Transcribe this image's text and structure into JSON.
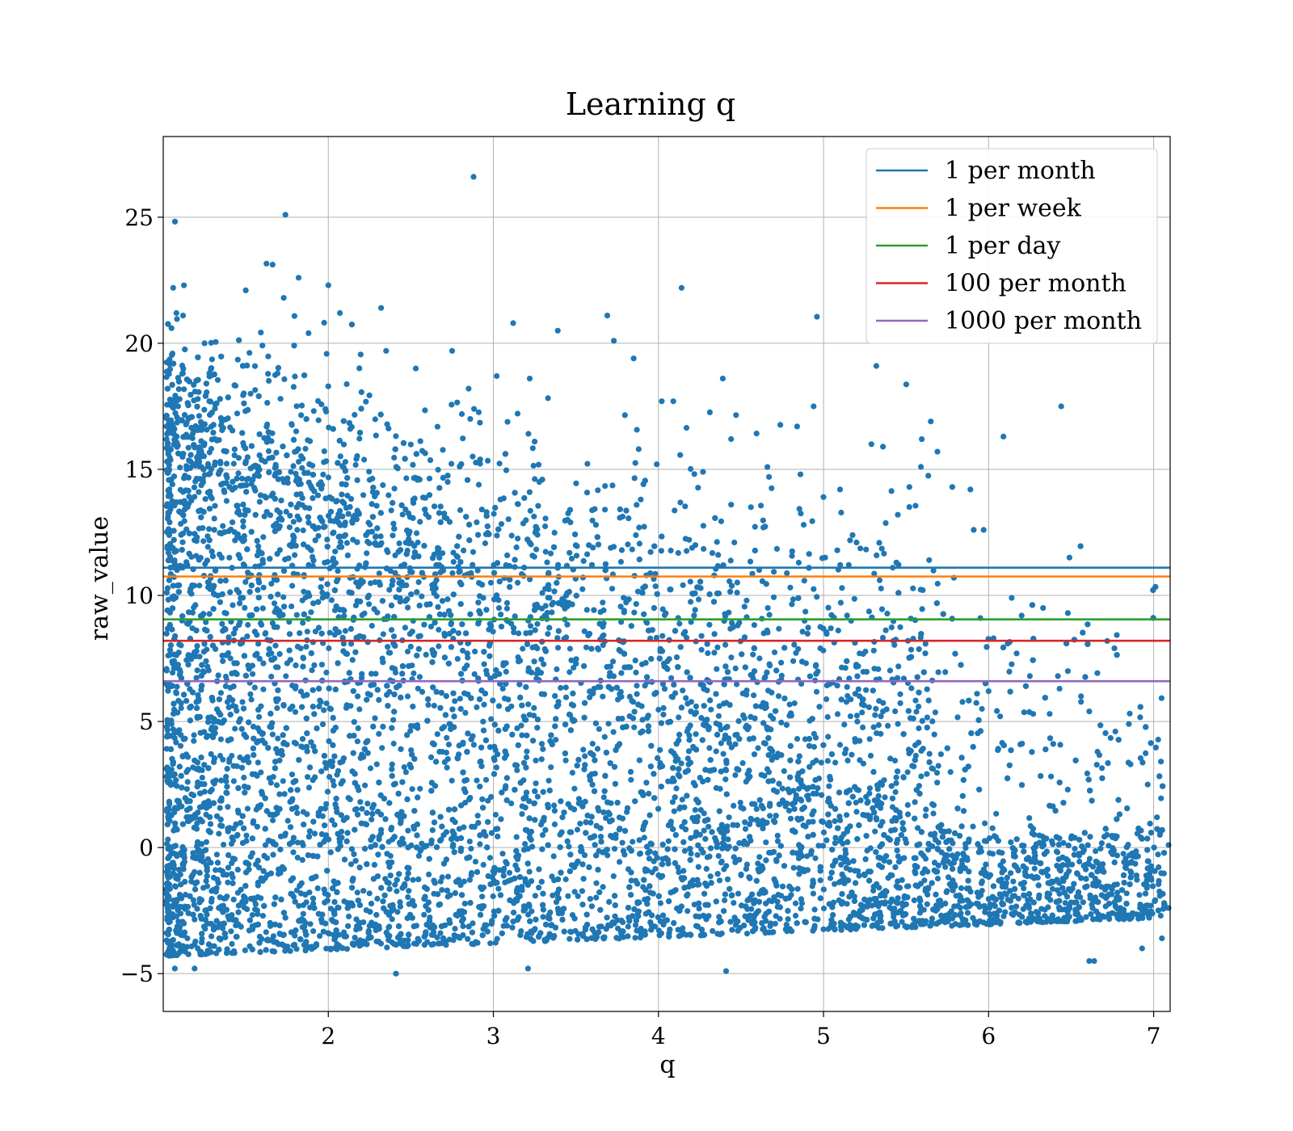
{
  "chart_data": {
    "type": "scatter",
    "title": "Learning q",
    "xlabel": "q",
    "ylabel": "raw_value",
    "xlim": [
      1.0,
      7.1
    ],
    "ylim": [
      -6.5,
      28.2
    ],
    "xticks": [
      2,
      3,
      4,
      5,
      6,
      7
    ],
    "xtick_labels": [
      "2",
      "3",
      "4",
      "5",
      "6",
      "7"
    ],
    "yticks": [
      -5,
      0,
      5,
      10,
      15,
      20,
      25
    ],
    "ytick_labels": [
      "−5",
      "0",
      "5",
      "10",
      "15",
      "20",
      "25"
    ],
    "grid": true,
    "legend_position": "top-right",
    "scatter_color": "#1f77b4",
    "scatter_points": [
      [
        1.74,
        25.1
      ],
      [
        2.88,
        26.6
      ],
      [
        1.06,
        22.2
      ],
      [
        1.5,
        22.1
      ],
      [
        1.82,
        22.6
      ],
      [
        2.0,
        22.3
      ],
      [
        1.73,
        21.8
      ],
      [
        1.08,
        21.2
      ],
      [
        1.12,
        21.1
      ],
      [
        2.07,
        21.2
      ],
      [
        2.32,
        21.4
      ],
      [
        1.05,
        20.6
      ],
      [
        3.12,
        20.8
      ],
      [
        3.69,
        21.1
      ],
      [
        3.73,
        20.1
      ],
      [
        3.39,
        20.5
      ],
      [
        4.14,
        22.2
      ],
      [
        1.25,
        20.0
      ],
      [
        1.88,
        20.4
      ],
      [
        2.35,
        19.7
      ],
      [
        2.75,
        19.7
      ],
      [
        3.85,
        19.4
      ],
      [
        5.32,
        19.1
      ],
      [
        2.53,
        19.0
      ],
      [
        4.39,
        18.6
      ],
      [
        3.02,
        18.7
      ],
      [
        3.22,
        18.6
      ],
      [
        2.85,
        18.2
      ],
      [
        4.94,
        17.5
      ],
      [
        6.44,
        17.5
      ],
      [
        4.02,
        17.7
      ],
      [
        4.09,
        17.7
      ],
      [
        4.84,
        16.7
      ],
      [
        5.65,
        16.9
      ],
      [
        6.09,
        16.3
      ],
      [
        4.44,
        16.2
      ],
      [
        3.25,
        16.1
      ],
      [
        5.29,
        16.0
      ],
      [
        5.36,
        15.9
      ],
      [
        5.69,
        15.7
      ],
      [
        5.59,
        15.1
      ],
      [
        3.99,
        15.2
      ],
      [
        3.88,
        15.8
      ],
      [
        4.27,
        14.9
      ],
      [
        4.67,
        14.7
      ],
      [
        4.86,
        14.8
      ],
      [
        5.78,
        14.3
      ],
      [
        5.89,
        14.2
      ],
      [
        5.1,
        14.2
      ],
      [
        5.0,
        13.9
      ],
      [
        5.52,
        14.3
      ],
      [
        4.56,
        13.5
      ],
      [
        4.44,
        13.6
      ],
      [
        5.45,
        13.2
      ],
      [
        5.91,
        12.6
      ],
      [
        5.97,
        12.6
      ],
      [
        6.49,
        11.5
      ],
      [
        5.64,
        11.4
      ],
      [
        5.2,
        12.1
      ],
      [
        5.01,
        11.5
      ],
      [
        4.85,
        11.3
      ],
      [
        4.88,
        12.8
      ],
      [
        4.46,
        12.1
      ],
      [
        5.34,
        10.6
      ],
      [
        5.42,
        11.1
      ],
      [
        5.79,
        10.7
      ],
      [
        6.14,
        9.9
      ],
      [
        6.2,
        9.2
      ],
      [
        6.33,
        9.5
      ],
      [
        6.48,
        9.3
      ],
      [
        5.95,
        9.1
      ],
      [
        6.03,
        8.3
      ],
      [
        6.17,
        7.7
      ],
      [
        6.25,
        6.8
      ],
      [
        6.42,
        6.8
      ],
      [
        6.48,
        7.0
      ],
      [
        6.43,
        6.3
      ],
      [
        6.61,
        5.4
      ],
      [
        6.56,
        6.0
      ],
      [
        6.27,
        5.3
      ],
      [
        6.37,
        5.3
      ],
      [
        6.07,
        5.2
      ],
      [
        6.0,
        6.2
      ],
      [
        5.93,
        6.1
      ],
      [
        5.96,
        5.5
      ],
      [
        6.85,
        4.9
      ],
      [
        6.86,
        3.3
      ],
      [
        6.66,
        3.8
      ],
      [
        7.02,
        1.2
      ],
      [
        7.04,
        0.6
      ],
      [
        7.09,
        0.1
      ],
      [
        6.93,
        -4.0
      ],
      [
        7.09,
        -2.4
      ],
      [
        6.61,
        -4.5
      ],
      [
        6.64,
        -4.5
      ],
      [
        7.05,
        -3.6
      ],
      [
        2.41,
        -5.0
      ],
      [
        4.41,
        -4.9
      ],
      [
        3.21,
        -4.8
      ],
      [
        1.19,
        -4.8
      ],
      [
        1.07,
        -4.8
      ]
    ],
    "series": [
      {
        "name": "1 per month",
        "type": "hline",
        "value": 11.1,
        "color": "#1f77b4"
      },
      {
        "name": "1 per week",
        "type": "hline",
        "value": 10.75,
        "color": "#ff7f0e"
      },
      {
        "name": "1 per day",
        "type": "hline",
        "value": 9.05,
        "color": "#2ca02c"
      },
      {
        "name": "100 per month",
        "type": "hline",
        "value": 8.2,
        "color": "#d62728"
      },
      {
        "name": "1000 per month",
        "type": "hline",
        "value": 6.6,
        "color": "#9467bd"
      }
    ]
  }
}
